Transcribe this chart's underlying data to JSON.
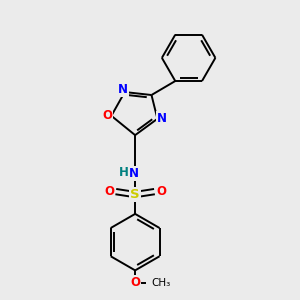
{
  "background_color": "#ebebeb",
  "bond_color": "#000000",
  "atom_colors": {
    "N": "#0000ff",
    "O": "#ff0000",
    "S": "#cccc00",
    "H": "#008080",
    "C": "#000000"
  },
  "figsize": [
    3.0,
    3.0
  ],
  "dpi": 100
}
